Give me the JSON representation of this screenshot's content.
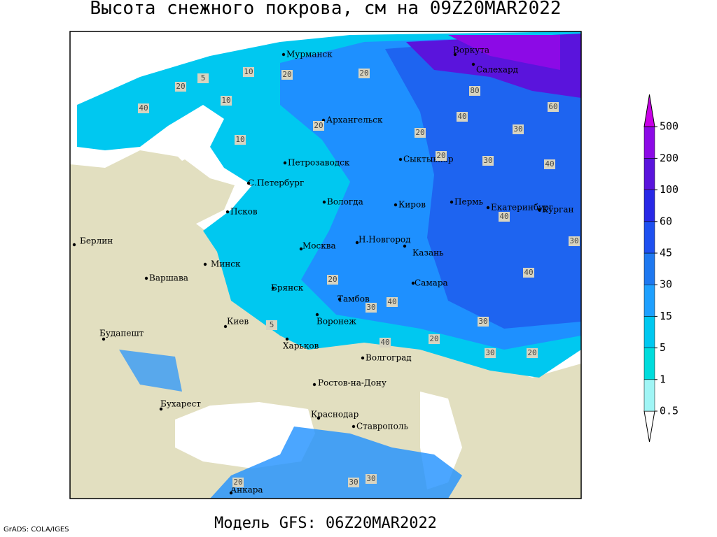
{
  "title": "Высота снежного покрова, см на 09Z20MAR2022",
  "subtitle": "Модель GFS: 06Z20MAR2022",
  "credit": "GrADS: COLA/IGES",
  "legend": {
    "levels": [
      0.5,
      1,
      5,
      15,
      30,
      45,
      60,
      100,
      200,
      500
    ],
    "colors": [
      "#ffffff",
      "#a0f5f5",
      "#00dcdc",
      "#00c8f0",
      "#1ea0ff",
      "#1e78f0",
      "#1e50f0",
      "#2828e6",
      "#5a14dc",
      "#8c0ae6",
      "#c800e6"
    ]
  },
  "cities": [
    "Мурманск",
    "Архангельск",
    "Воркута",
    "Салехард",
    "Сыктывкар",
    "Петрозаводск",
    "С.Петербург",
    "Вологда",
    "Киров",
    "Пермь",
    "Екатеринбург",
    "Курган",
    "Псков",
    "Берлин",
    "Н.Новгород",
    "Москва",
    "Казань",
    "Минск",
    "Варшава",
    "Самара",
    "Брянск",
    "Тамбов",
    "Воронеж",
    "Киев",
    "Будапешт",
    "Харьков",
    "Волгоград",
    "Ростов-на-Дону",
    "Бухарест",
    "Краснодар",
    "Ставрополь",
    "Анкара"
  ],
  "contour_labels": [
    10,
    20,
    5,
    20,
    10,
    40,
    20,
    10,
    20,
    30,
    80,
    60,
    40,
    30,
    40,
    20,
    30,
    40,
    30,
    20,
    40,
    30,
    20,
    5,
    30,
    40,
    20,
    30,
    30,
    20,
    20,
    40
  ]
}
